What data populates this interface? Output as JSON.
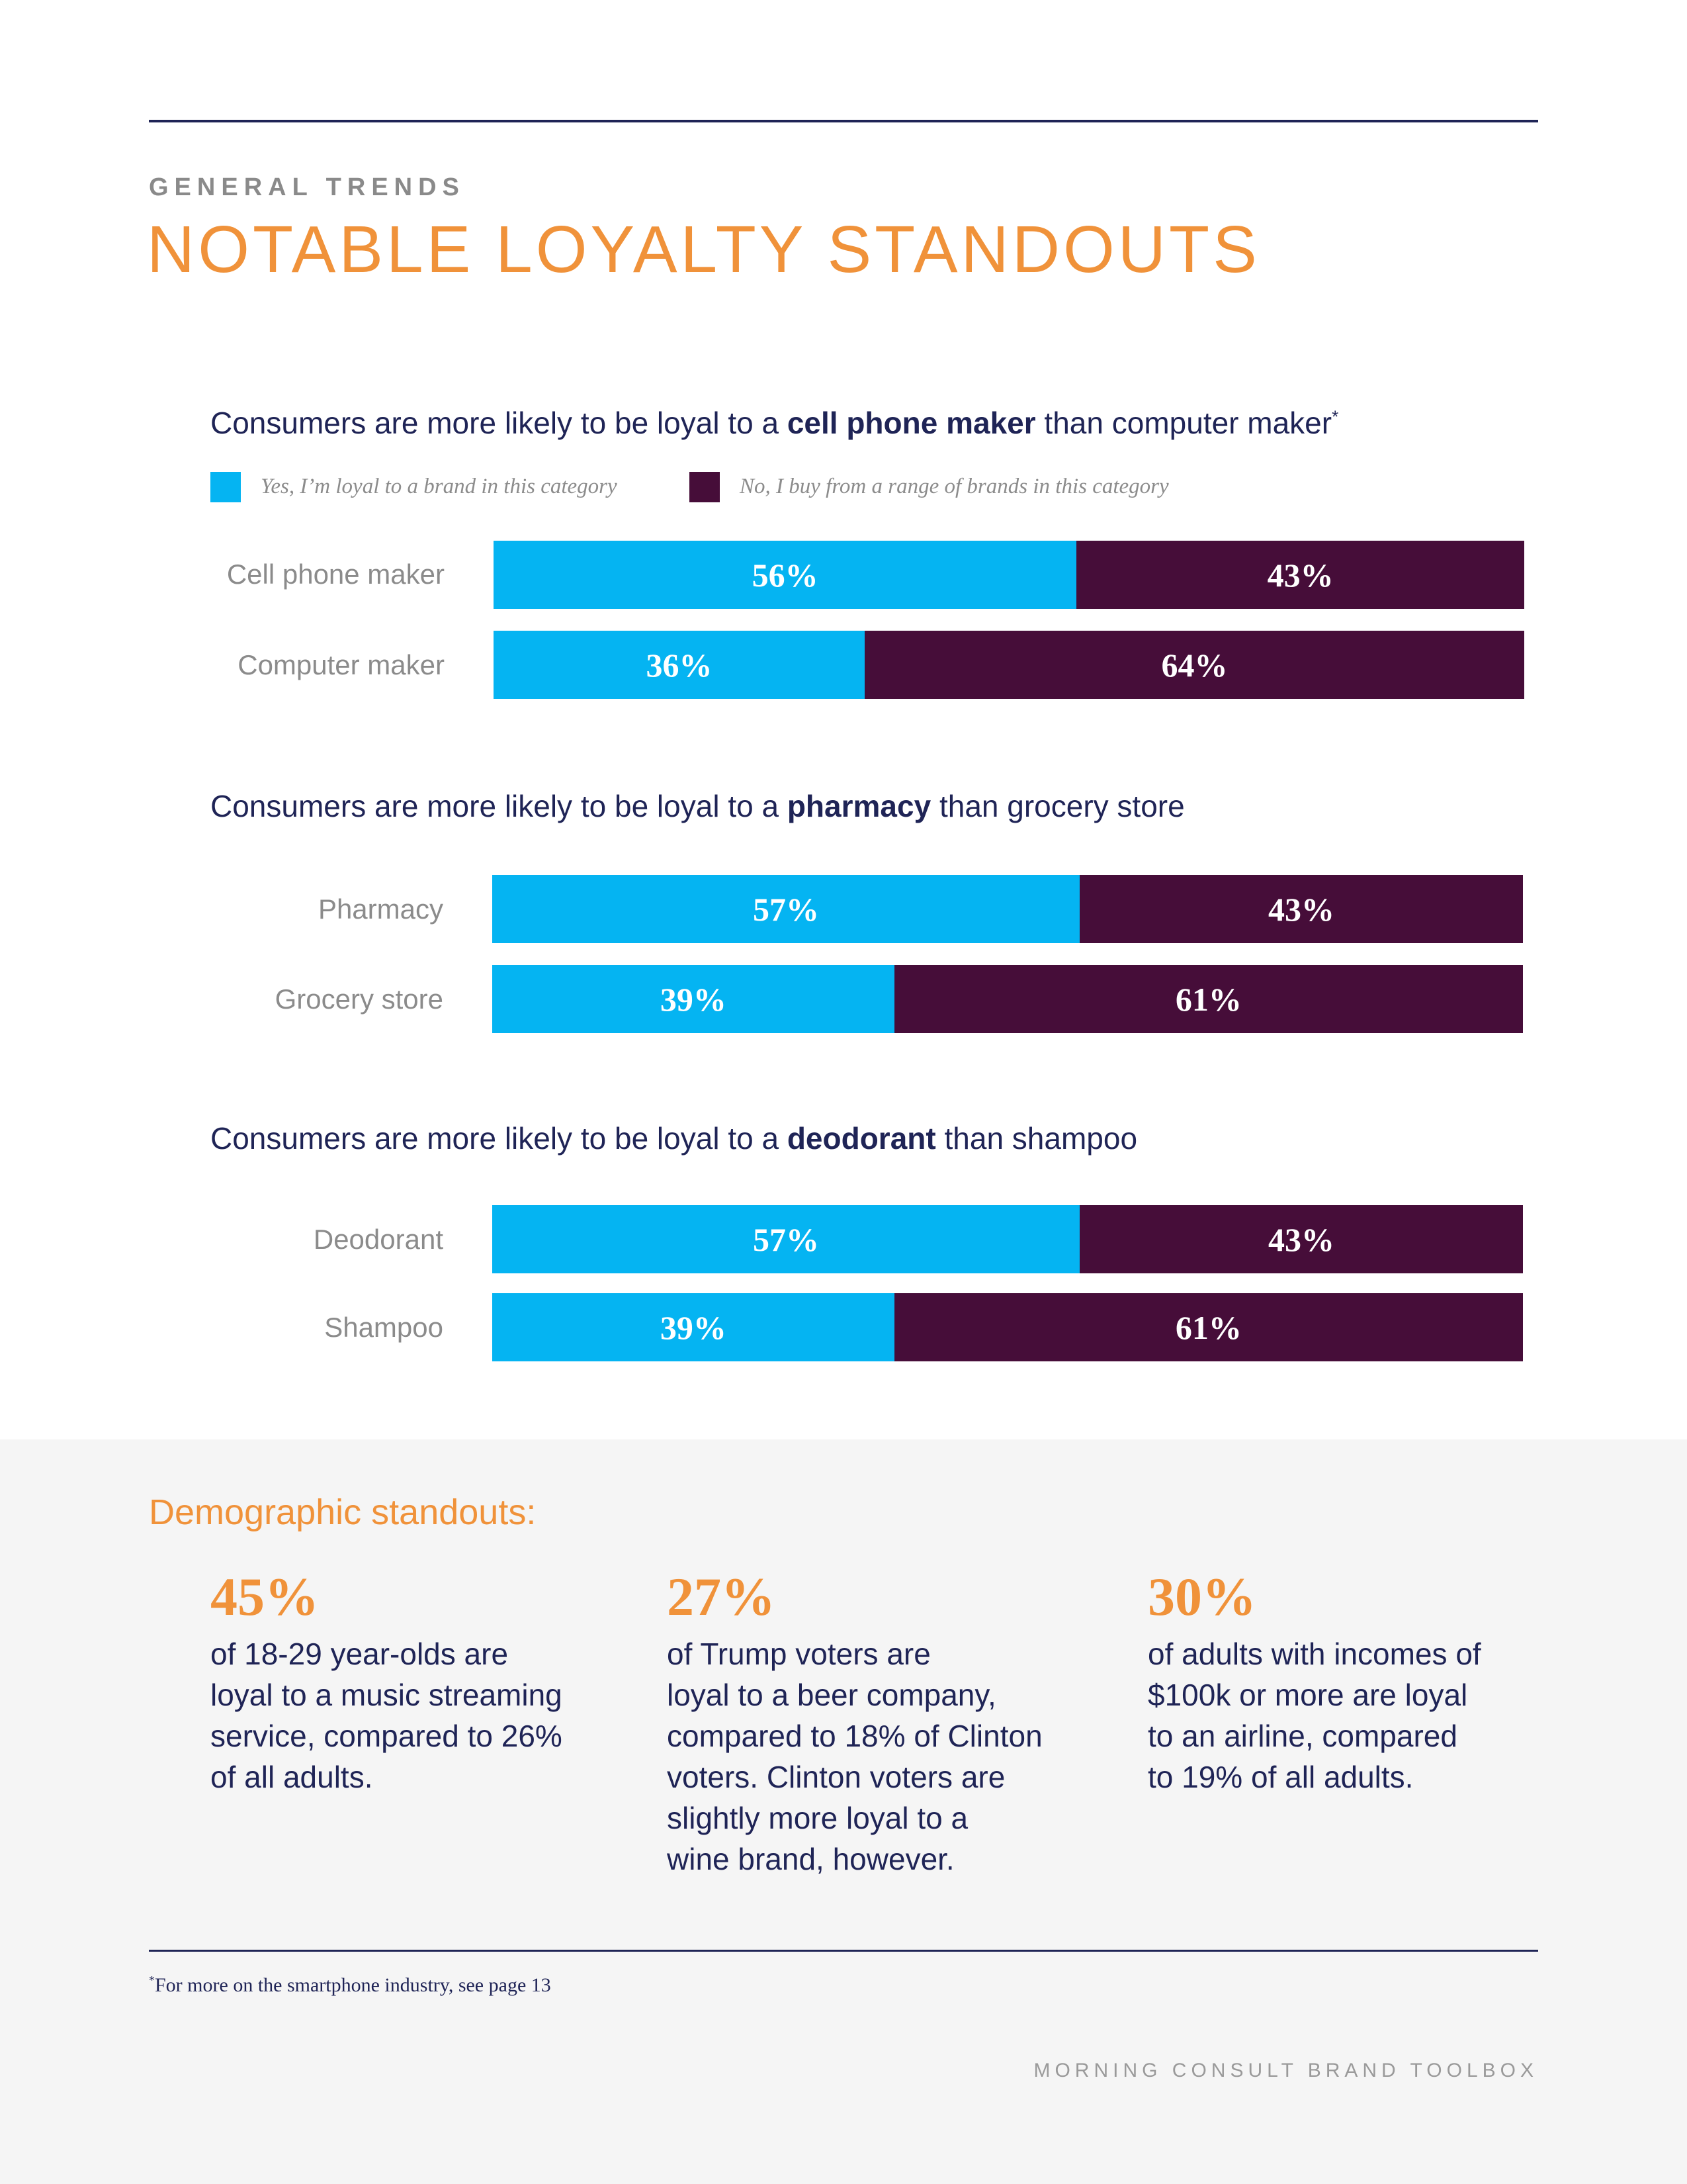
{
  "header": {
    "eyebrow": "GENERAL TRENDS",
    "title": "NOTABLE LOYALTY STANDOUTS"
  },
  "colors": {
    "yes": "#05b4f2",
    "no": "#460d39",
    "accent": "#f0923a",
    "navy": "#1f2456"
  },
  "legend": {
    "yes_label": "Yes, I’m loyal to a brand in this category",
    "no_label": "No, I buy from a range of brands in this category"
  },
  "sections": [
    {
      "subtitle_pre": "Consumers are more likely to be loyal to a ",
      "subtitle_bold": "cell phone maker",
      "subtitle_post": " than computer maker",
      "subtitle_mark": "*",
      "rows": [
        {
          "label": "Cell phone maker",
          "yes": 56,
          "no": 43,
          "yes_label": "56%",
          "no_label": "43%"
        },
        {
          "label": "Computer maker",
          "yes": 36,
          "no": 64,
          "yes_label": "36%",
          "no_label": "64%"
        }
      ]
    },
    {
      "subtitle_pre": "Consumers are more likely to be loyal to a ",
      "subtitle_bold": "pharmacy",
      "subtitle_post": " than grocery store",
      "subtitle_mark": "",
      "rows": [
        {
          "label": "Pharmacy",
          "yes": 57,
          "no": 43,
          "yes_label": "57%",
          "no_label": "43%"
        },
        {
          "label": "Grocery store",
          "yes": 39,
          "no": 61,
          "yes_label": "39%",
          "no_label": "61%"
        }
      ]
    },
    {
      "subtitle_pre": "Consumers are more likely to be loyal to a ",
      "subtitle_bold": "deodorant",
      "subtitle_post": " than shampoo",
      "subtitle_mark": "",
      "rows": [
        {
          "label": "Deodorant",
          "yes": 57,
          "no": 43,
          "yes_label": "57%",
          "no_label": "43%"
        },
        {
          "label": "Shampoo",
          "yes": 39,
          "no": 61,
          "yes_label": "39%",
          "no_label": "61%"
        }
      ]
    }
  ],
  "demographics": {
    "heading": "Demographic standouts:",
    "stats": [
      {
        "value": "45%",
        "text": "of 18-29 year-olds are\nloyal to a music streaming\nservice, compared to 26%\nof all adults."
      },
      {
        "value": "27%",
        "text": "of Trump voters are\nloyal to a beer company,\ncompared to 18% of Clinton\nvoters. Clinton voters are\nslightly more loyal to a\nwine brand, however."
      },
      {
        "value": "30%",
        "text": "of adults with incomes of\n$100k or more are loyal\nto an airline, compared\nto 19% of all adults."
      }
    ]
  },
  "footnote": {
    "mark": "*",
    "text": "For more on the smartphone industry, see page 13"
  },
  "footer": "MORNING CONSULT BRAND TOOLBOX"
}
